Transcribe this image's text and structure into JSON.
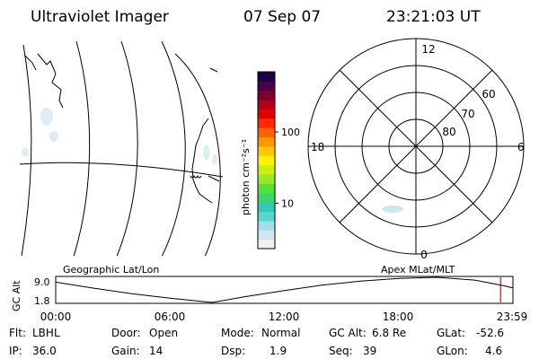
{
  "header": {
    "instrument": "Ultraviolet Imager",
    "date": "07 Sep 07",
    "time": "23:21:03 UT"
  },
  "colorbar": {
    "label": "photon cm⁻²s⁻¹",
    "ticks": [
      {
        "value": 10,
        "label": "10"
      },
      {
        "value": 100,
        "label": "100"
      }
    ],
    "colors": [
      "#f0f0f0",
      "#cfe6ee",
      "#9fdfe6",
      "#55d6cf",
      "#35c7b8",
      "#3fd46a",
      "#55e03a",
      "#9be81e",
      "#ccee10",
      "#fff200",
      "#ffc800",
      "#ff9600",
      "#ff6000",
      "#ff2a00",
      "#e00000",
      "#b0001a",
      "#7a0030",
      "#480048",
      "#200040"
    ]
  },
  "panels": {
    "left_label": "Geographic Lat/Lon",
    "right_label": "Apex  MLat/MLT",
    "polar": {
      "mlt_labels": [
        "12",
        "18",
        "6",
        "0"
      ],
      "lat_labels": [
        "60",
        "70",
        "80"
      ]
    }
  },
  "chart_data": {
    "type": "line",
    "title": "",
    "ylabel": "GC Alt",
    "yticks": [
      "9.0",
      "1.8"
    ],
    "ylim": [
      1.8,
      9.0
    ],
    "xlim": [
      0,
      24
    ],
    "xticks": [
      "00:00",
      "06:00",
      "12:00",
      "18:00",
      "23:59"
    ],
    "series": [
      {
        "x": [
          0,
          2,
          4,
          6,
          8.2,
          10,
          12,
          14,
          16,
          18,
          20,
          22,
          23.35,
          24
        ],
        "y": [
          7.6,
          5.9,
          4.3,
          3.0,
          1.8,
          3.5,
          5.2,
          6.8,
          7.9,
          8.7,
          9.0,
          8.2,
          6.8,
          6.0
        ]
      }
    ],
    "marker_time": 23.35
  },
  "info": [
    {
      "key": "Flt:",
      "value": "LBHL"
    },
    {
      "key": "Door:",
      "value": "Open"
    },
    {
      "key": "Mode:",
      "value": "Normal"
    },
    {
      "key": "GC Alt:",
      "value": "6.8 Re"
    },
    {
      "key": "GLat:",
      "value": "-52.6"
    },
    {
      "key": "IP:",
      "value": "36.0"
    },
    {
      "key": "Gain:",
      "value": "14"
    },
    {
      "key": "Dsp:",
      "value": "1.9"
    },
    {
      "key": "Seq:",
      "value": "39"
    },
    {
      "key": "GLon:",
      "value": "4.6"
    }
  ]
}
